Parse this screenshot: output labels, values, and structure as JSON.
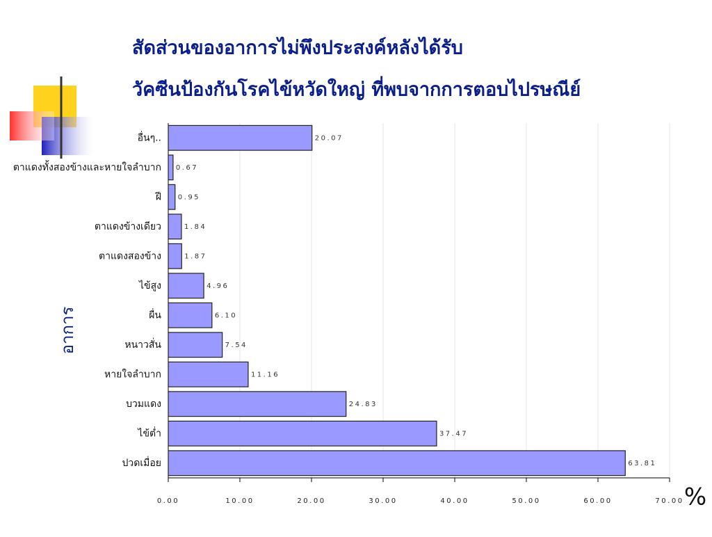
{
  "chart_data": {
    "type": "barh",
    "title": [
      "สัดส่วนของอาการไม่พึงประสงค์หลังได้รับ",
      "วัคซีนป้องกันโรคไข้หวัดใหญ่ ที่พบจากการตอบไปรษณีย์"
    ],
    "ylabel": "อาการ",
    "xlabel": "%",
    "categories": [
      "อื่นๆ..",
      "ตาแดงทั้งสองข้างและหายใจลำบาก",
      "ฝี",
      "ตาแดงข้างเดียว",
      "ตาแดงสองข้าง",
      "ไข้สูง",
      "ผื่น",
      "หนาวสั่น",
      "หายใจลำบาก",
      "บวมแดง",
      "ไข้ต่ำ",
      "ปวดเมื่อย"
    ],
    "values": [
      20.07,
      0.67,
      0.95,
      1.84,
      1.87,
      4.96,
      6.1,
      7.54,
      11.16,
      24.83,
      37.47,
      63.81
    ],
    "value_labels": [
      "20.07",
      "0.67",
      "0.95",
      "1.84",
      "1.87",
      "4.96",
      "6.10",
      "7.54",
      "11.16",
      "24.83",
      "37.47",
      "63.81"
    ],
    "color": "#9999ff",
    "xlim": [
      0,
      70
    ],
    "xticks": [
      {
        "value": 0,
        "label": "0.00"
      },
      {
        "value": 10,
        "label": "10.00"
      },
      {
        "value": 20,
        "label": "20.00"
      },
      {
        "value": 30,
        "label": "30.00"
      },
      {
        "value": 40,
        "label": "40.00"
      },
      {
        "value": 50,
        "label": "50.00"
      },
      {
        "value": 60,
        "label": "60.00"
      },
      {
        "value": 70,
        "label": "70.00"
      }
    ],
    "grid": true
  }
}
